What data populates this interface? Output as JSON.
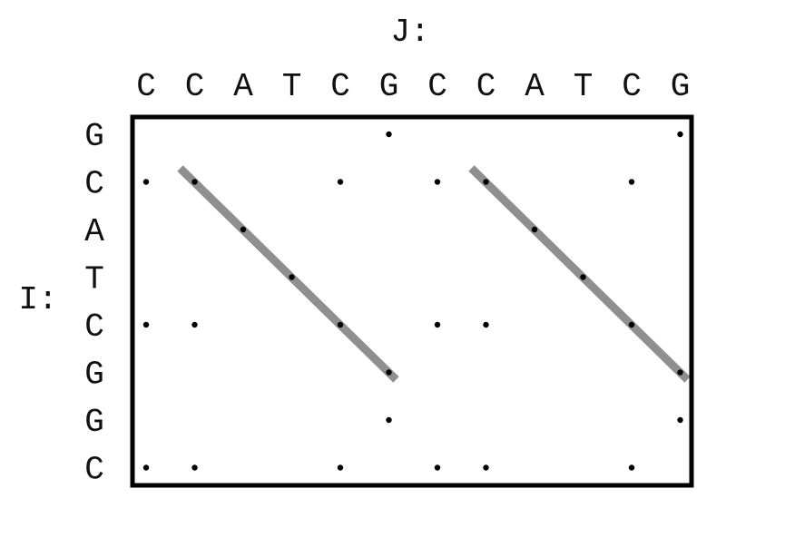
{
  "j_label": "J:",
  "i_label": "I:",
  "sequence_j": [
    "C",
    "C",
    "A",
    "T",
    "C",
    "G",
    "C",
    "C",
    "A",
    "T",
    "C",
    "G"
  ],
  "sequence_i": [
    "G",
    "C",
    "A",
    "T",
    "C",
    "G",
    "G",
    "C"
  ],
  "colors": {
    "border": "#000000",
    "dot": "#000000",
    "diagonal": "#8f8f8f",
    "text": "#111111"
  }
}
